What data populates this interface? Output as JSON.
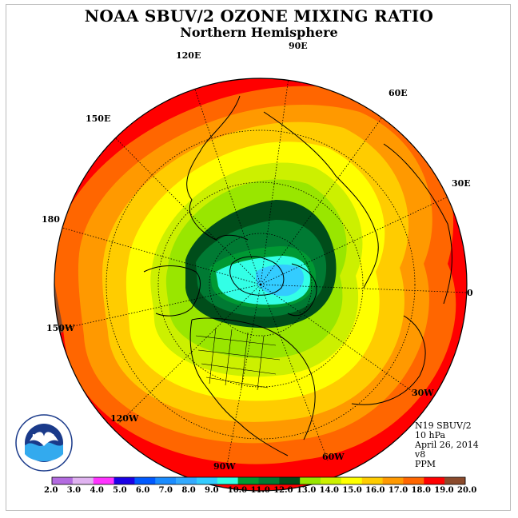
{
  "title": "NOAA SBUV/2 OZONE MIXING RATIO",
  "subtitle": "Northern Hemisphere",
  "longitude_labels": {
    "e90": "90E",
    "e60": "60E",
    "e30": "30E",
    "zero": "0",
    "w30": "30W",
    "w60": "60W",
    "w90": "90W",
    "w120": "120W",
    "w150": "150W",
    "lon180": "180",
    "e150": "150E",
    "e120": "120E"
  },
  "info": {
    "instrument": "N19 SBUV/2",
    "level": "10 hPa",
    "date": "April 26, 2014",
    "version": "v8",
    "units": "PPM"
  },
  "logo_text": "NOAA",
  "colorbar": {
    "labels": [
      "2.0",
      "3.0",
      "4.0",
      "5.0",
      "6.0",
      "7.0",
      "8.0",
      "9.0",
      "10.0",
      "11.0",
      "12.0",
      "13.0",
      "14.0",
      "15.0",
      "16.0",
      "17.0",
      "18.0",
      "19.0",
      "20.0"
    ],
    "colors": [
      "#b36be0",
      "#e0b3f0",
      "#ff33ff",
      "#1a00e6",
      "#0059ff",
      "#1a8cff",
      "#33aaff",
      "#33ccff",
      "#33ffe6",
      "#009933",
      "#007a33",
      "#004d1a",
      "#99e600",
      "#ccf000",
      "#ffff00",
      "#ffcc00",
      "#ff9900",
      "#ff6600",
      "#ff0000",
      "#8b4a2b"
    ]
  },
  "map_data": {
    "projection": "north-polar-stereographic",
    "variable": "ozone mixing ratio",
    "contour_levels": [
      9,
      10,
      11,
      12,
      13,
      14,
      15,
      16,
      17,
      18,
      19
    ],
    "band_colors": {
      "9": "#33ccff",
      "10": "#33ffe6",
      "11": "#009933",
      "12": "#007a33",
      "13": "#004d1a",
      "14": "#99e600",
      "15": "#ccf000",
      "16": "#ffff00",
      "17": "#ffcc00",
      "18": "#ff9900",
      "19": "#ff6600",
      "20": "#ff0000"
    }
  }
}
